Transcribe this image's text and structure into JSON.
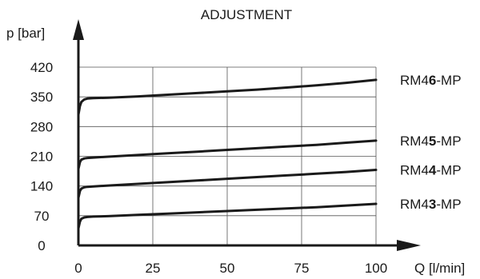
{
  "chart_data": {
    "type": "line",
    "title": "ADJUSTMENT",
    "xlabel": "Q [l/min]",
    "ylabel": "p [bar]",
    "xlim": [
      0,
      100
    ],
    "ylim": [
      0,
      420
    ],
    "x_ticks": [
      "0",
      "25",
      "50",
      "75",
      "100"
    ],
    "y_ticks": [
      "0",
      "70",
      "140",
      "210",
      "280",
      "350",
      "420"
    ],
    "grid": true,
    "series": [
      {
        "name": "RM46-MP",
        "name_parts": [
          "RM4",
          "6",
          "-MP"
        ],
        "x": [
          0,
          0.5,
          1,
          2,
          3,
          5,
          10,
          20,
          30,
          40,
          50,
          60,
          70,
          80,
          90,
          100
        ],
        "y": [
          308,
          328,
          338,
          344,
          346,
          347,
          348,
          351,
          355,
          359,
          363,
          367,
          372,
          377,
          383,
          390
        ]
      },
      {
        "name": "RM45-MP",
        "name_parts": [
          "RM4",
          "5",
          "-MP"
        ],
        "x": [
          0,
          0.5,
          1,
          2,
          3,
          5,
          10,
          20,
          30,
          40,
          50,
          60,
          70,
          80,
          90,
          100
        ],
        "y": [
          180,
          196,
          202,
          205,
          206,
          207,
          209,
          213,
          217,
          221,
          225,
          229,
          233,
          237,
          242,
          247
        ]
      },
      {
        "name": "RM44-MP",
        "name_parts": [
          "RM4",
          "4",
          "-MP"
        ],
        "x": [
          0,
          0.5,
          1,
          2,
          3,
          5,
          10,
          20,
          30,
          40,
          50,
          60,
          70,
          80,
          90,
          100
        ],
        "y": [
          112,
          128,
          134,
          137,
          138,
          139,
          141,
          145,
          149,
          153,
          157,
          161,
          165,
          169,
          173,
          178
        ]
      },
      {
        "name": "RM43-MP",
        "name_parts": [
          "RM4",
          "3",
          "-MP"
        ],
        "x": [
          0,
          0.5,
          1,
          2,
          3,
          5,
          10,
          20,
          30,
          40,
          50,
          60,
          70,
          80,
          90,
          100
        ],
        "y": [
          40,
          56,
          63,
          66,
          67,
          68,
          69,
          72,
          75,
          78,
          81,
          84,
          87,
          90,
          94,
          98
        ]
      }
    ]
  }
}
